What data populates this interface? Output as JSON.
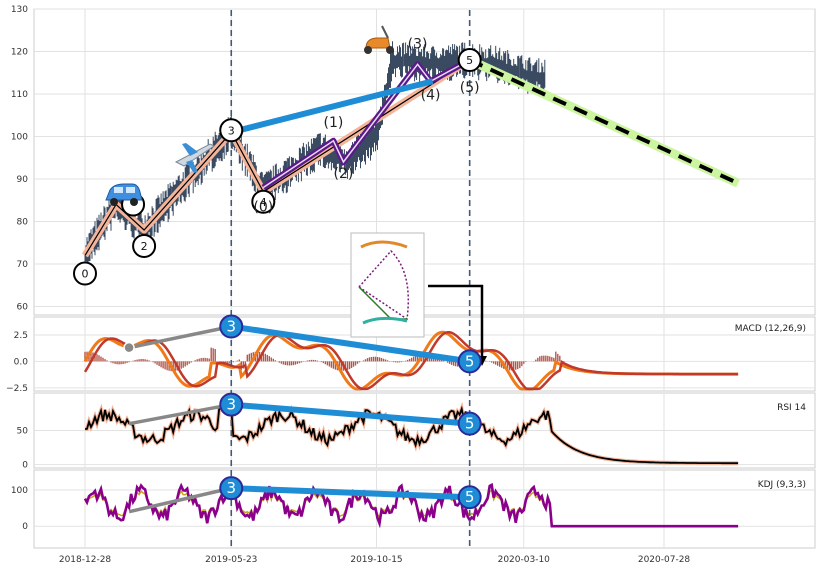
{
  "chart_data": {
    "type": "line",
    "x_tick_labels": [
      "2018-12-28",
      "2019-05-23",
      "2019-10-15",
      "2020-03-10",
      "2020-07-28"
    ],
    "price_panel": {
      "ylim": [
        58,
        130
      ],
      "yticks": [
        60,
        70,
        80,
        90,
        100,
        110,
        120,
        130
      ],
      "series_date_range": [
        "2018-12-28",
        "2020-03-31"
      ],
      "price_waypoints": [
        [
          "2018-12-28",
          72
        ],
        [
          "2019-01-28",
          84
        ],
        [
          "2019-02-25",
          78
        ],
        [
          "2019-05-23",
          101
        ],
        [
          "2019-06-24",
          87
        ],
        [
          "2019-08-20",
          97
        ],
        [
          "2019-09-16",
          94
        ],
        [
          "2019-10-15",
          100
        ],
        [
          "2019-10-31",
          118
        ],
        [
          "2019-12-10",
          117
        ],
        [
          "2020-01-16",
          118
        ],
        [
          "2020-02-10",
          117
        ],
        [
          "2020-03-20",
          114
        ]
      ],
      "primary_wave": [
        {
          "date": "2018-12-28",
          "value": 72,
          "label": "0"
        },
        {
          "date": "2019-01-28",
          "value": 84,
          "label": ""
        },
        {
          "date": "2019-02-25",
          "value": 78,
          "label": "2"
        },
        {
          "date": "2019-05-23",
          "value": 101,
          "label": "3"
        },
        {
          "date": "2019-06-24",
          "value": 87,
          "label": "4"
        },
        {
          "date": "2020-01-16",
          "value": 118,
          "label": "5"
        }
      ],
      "sub_wave": [
        {
          "date": "2019-06-24",
          "value": 88,
          "label": "(0)"
        },
        {
          "date": "2019-09-02",
          "value": 99,
          "label": "(1)"
        },
        {
          "date": "2019-09-12",
          "value": 94,
          "label": "(2)"
        },
        {
          "date": "2019-11-25",
          "value": 117,
          "label": "(3)"
        },
        {
          "date": "2019-12-08",
          "value": 113,
          "label": "(4)"
        },
        {
          "date": "2020-01-16",
          "value": 118,
          "label": "(5)"
        }
      ],
      "wave_circle_labels": [
        "0",
        "",
        "2",
        "3",
        "4",
        "5"
      ],
      "sub_wave_labels": [
        "(0)",
        "(1)",
        "(2)",
        "(3)",
        "(4)",
        "(5)"
      ],
      "divergence_line": {
        "from": [
          "2019-05-23",
          101
        ],
        "to": [
          "2019-12-10",
          113
        ]
      },
      "projection": {
        "from": [
          "2020-01-16",
          118
        ],
        "to": [
          "2020-10-10",
          89
        ]
      },
      "vertical_markers": [
        "2019-05-23",
        "2020-01-16"
      ]
    },
    "macd_panel": {
      "label": "MACD (12,26,9)",
      "ylim": [
        -2.8,
        4.2
      ],
      "yticks": [
        -2.5,
        0.0,
        2.5
      ],
      "ytick_labels": [
        "−2.5",
        "0.0",
        "2.5"
      ],
      "markers": [
        {
          "date": "2019-05-23",
          "value": 3.3,
          "label": "3"
        },
        {
          "date": "2020-01-16",
          "value": 0.0,
          "label": "5"
        }
      ]
    },
    "rsi_panel": {
      "label": "RSI 14",
      "ylim": [
        -5,
        105
      ],
      "yticks": [
        0,
        50
      ],
      "markers": [
        {
          "date": "2019-05-23",
          "value": 88,
          "label": "3"
        },
        {
          "date": "2020-01-16",
          "value": 60,
          "label": "5"
        }
      ]
    },
    "kdj_panel": {
      "label": "KDJ (9,3,3)",
      "ylim": [
        -60,
        155
      ],
      "yticks": [
        0,
        100
      ],
      "markers": [
        {
          "date": "2019-05-23",
          "value": 105,
          "label": "3"
        },
        {
          "date": "2020-01-16",
          "value": 80,
          "label": "5"
        }
      ]
    },
    "icons": [
      "car-icon",
      "airplane-icon",
      "scooter-icon",
      "inset-thumbnail-icon"
    ],
    "colors": {
      "price": "#3a4a60",
      "wave_main": "#f4b499",
      "wave_thin": "#000000",
      "sub_wave": "#5b1a8a",
      "divergence": "#1f8dd6",
      "projection_glow": "#ccf5a0",
      "projection_dash": "#000000",
      "marker_fill": "#1f8dd6",
      "marker_stroke": "#2a2a9a",
      "macd_line": "#f07a1a",
      "macd_signal": "#c0392b",
      "macd_hist_pos": "#a83a28",
      "macd_hist_neg": "#6b8e23",
      "rsi_line": "#000000",
      "rsi_glow": "#f4b499",
      "kdj_k": "#8b008b",
      "kdj_d": "#c8a020",
      "gray_line": "#888888"
    }
  }
}
